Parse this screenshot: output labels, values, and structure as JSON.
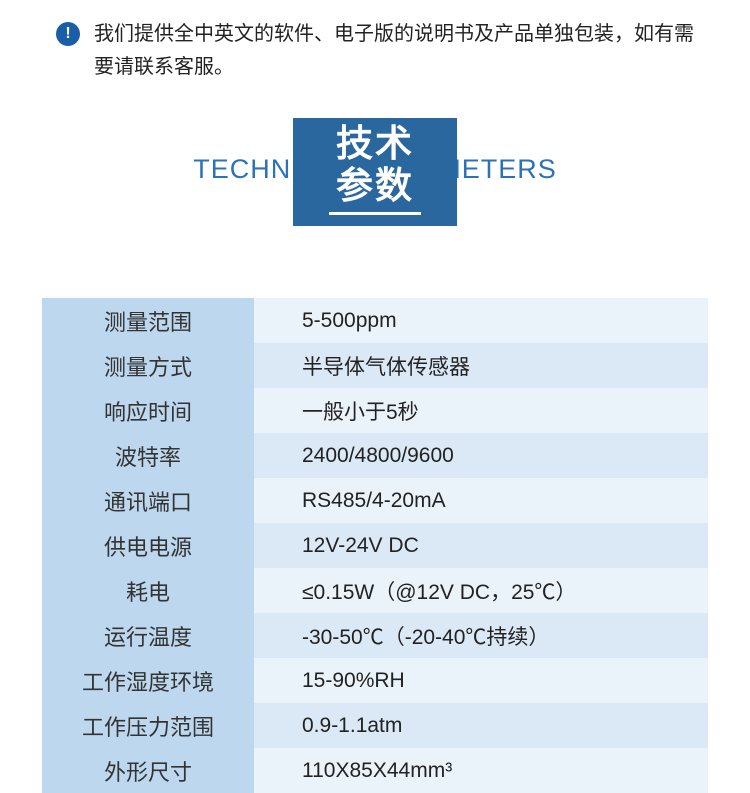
{
  "colors": {
    "notice_icon_bg": "#1b5ea8",
    "title_en_color": "#2b72b8",
    "title_box_bg": "#2a679e",
    "row_label_bg": "#bdd7ee",
    "row_value_bg_odd": "#eaf2fa",
    "row_value_bg_even": "#dbe9f6"
  },
  "notice": {
    "icon_glyph": "!",
    "text": "我们提供全中英文的软件、电子版的说明书及产品单独包装，如有需要请联系客服。"
  },
  "title": {
    "en": "TECHNICAL PARAMETERS",
    "cn_line1": "技术",
    "cn_line2": "参数"
  },
  "specs": [
    {
      "label": "测量范围",
      "value": "5-500ppm"
    },
    {
      "label": "测量方式",
      "value": "半导体气体传感器"
    },
    {
      "label": "响应时间",
      "value": "一般小于5秒"
    },
    {
      "label": "波特率",
      "value": "2400/4800/9600"
    },
    {
      "label": "通讯端口",
      "value": "RS485/4-20mA"
    },
    {
      "label": "供电电源",
      "value": "12V-24V DC"
    },
    {
      "label": "耗电",
      "value": "≤0.15W（@12V DC，25℃）"
    },
    {
      "label": "运行温度",
      "value": "-30-50℃（-20-40℃持续）"
    },
    {
      "label": "工作湿度环境",
      "value": "15-90%RH"
    },
    {
      "label": "工作压力范围",
      "value": "0.9-1.1atm"
    },
    {
      "label": "外形尺寸",
      "value": "110X85X44mm³"
    }
  ]
}
